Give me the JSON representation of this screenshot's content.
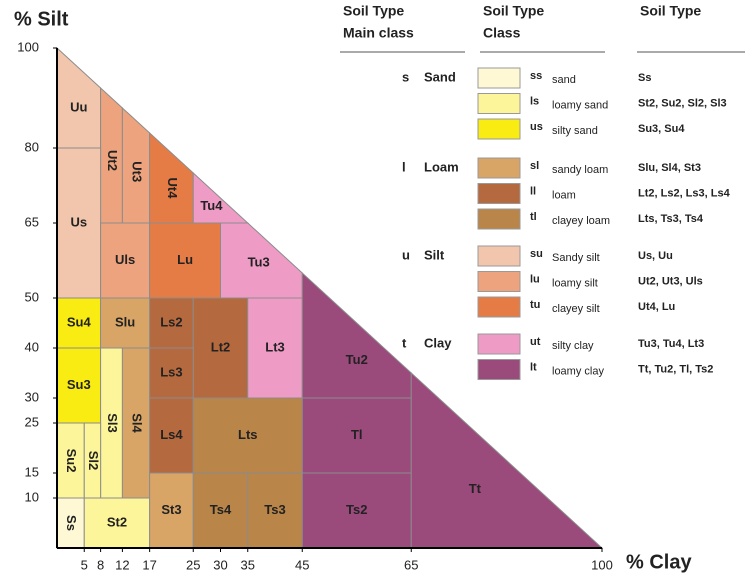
{
  "axes": {
    "y_label": "% Silt",
    "x_label": "% Clay",
    "xlim": [
      0,
      100
    ],
    "ylim": [
      0,
      100
    ],
    "xticks": [
      5,
      8,
      12,
      17,
      25,
      30,
      35,
      45,
      65,
      100
    ],
    "yticks": [
      100,
      80,
      65,
      50,
      40,
      30,
      25,
      15,
      10
    ]
  },
  "regions": [
    {
      "label": "Uu",
      "color": "#f2c6ac",
      "points": [
        [
          0,
          80
        ],
        [
          8,
          80
        ],
        [
          8,
          92
        ],
        [
          0,
          100
        ]
      ]
    },
    {
      "label": "Ut2",
      "color": "#eda47e",
      "points": [
        [
          8,
          65
        ],
        [
          12,
          65
        ],
        [
          12,
          88
        ],
        [
          8,
          92
        ]
      ]
    },
    {
      "label": "Ut3",
      "color": "#eda47e",
      "points": [
        [
          12,
          65
        ],
        [
          17,
          65
        ],
        [
          17,
          83
        ],
        [
          12,
          88
        ]
      ]
    },
    {
      "label": "Ut4",
      "color": "#e67c45",
      "points": [
        [
          17,
          65
        ],
        [
          25,
          65
        ],
        [
          25,
          75
        ],
        [
          17,
          83
        ]
      ]
    },
    {
      "label": "Us",
      "color": "#f2c6ac",
      "points": [
        [
          0,
          50
        ],
        [
          8,
          50
        ],
        [
          8,
          80
        ],
        [
          0,
          80
        ]
      ]
    },
    {
      "label": "Uls",
      "color": "#eda47e",
      "points": [
        [
          8,
          50
        ],
        [
          17,
          50
        ],
        [
          17,
          65
        ],
        [
          8,
          65
        ]
      ]
    },
    {
      "label": "Lu",
      "color": "#e67c45",
      "points": [
        [
          17,
          50
        ],
        [
          30,
          50
        ],
        [
          30,
          65
        ],
        [
          17,
          65
        ]
      ]
    },
    {
      "label": "Tu4",
      "color": "#ee9cc6",
      "points": [
        [
          25,
          65
        ],
        [
          35,
          65
        ],
        [
          25,
          75
        ]
      ]
    },
    {
      "label": "Tu3",
      "color": "#ee9cc6",
      "points": [
        [
          30,
          50
        ],
        [
          45,
          50
        ],
        [
          45,
          55
        ],
        [
          35,
          65
        ],
        [
          30,
          65
        ]
      ]
    },
    {
      "label": "Su4",
      "color": "#f8ec13",
      "points": [
        [
          0,
          40
        ],
        [
          8,
          40
        ],
        [
          8,
          50
        ],
        [
          0,
          50
        ]
      ]
    },
    {
      "label": "Slu",
      "color": "#d9a567",
      "points": [
        [
          8,
          40
        ],
        [
          17,
          40
        ],
        [
          17,
          50
        ],
        [
          8,
          50
        ]
      ]
    },
    {
      "label": "Ls2",
      "color": "#b5693f",
      "points": [
        [
          17,
          40
        ],
        [
          25,
          40
        ],
        [
          25,
          50
        ],
        [
          17,
          50
        ]
      ]
    },
    {
      "label": "Lt2",
      "color": "#b5693f",
      "points": [
        [
          25,
          30
        ],
        [
          35,
          30
        ],
        [
          35,
          50
        ],
        [
          25,
          50
        ]
      ]
    },
    {
      "label": "Lt3",
      "color": "#ee9cc6",
      "points": [
        [
          35,
          30
        ],
        [
          45,
          30
        ],
        [
          45,
          50
        ],
        [
          35,
          50
        ]
      ]
    },
    {
      "label": "Tu2",
      "color": "#9b4a7c",
      "points": [
        [
          45,
          30
        ],
        [
          65,
          30
        ],
        [
          65,
          35
        ],
        [
          45,
          55
        ]
      ]
    },
    {
      "label": "Su3",
      "color": "#f8ec13",
      "points": [
        [
          0,
          25
        ],
        [
          8,
          25
        ],
        [
          8,
          40
        ],
        [
          0,
          40
        ]
      ]
    },
    {
      "label": "Sl3",
      "color": "#fdf59a",
      "points": [
        [
          8,
          10
        ],
        [
          12,
          10
        ],
        [
          12,
          40
        ],
        [
          8,
          40
        ]
      ]
    },
    {
      "label": "Sl4",
      "color": "#d9a567",
      "points": [
        [
          12,
          10
        ],
        [
          17,
          10
        ],
        [
          17,
          40
        ],
        [
          12,
          40
        ]
      ]
    },
    {
      "label": "Ls3",
      "color": "#b5693f",
      "points": [
        [
          17,
          30
        ],
        [
          25,
          30
        ],
        [
          25,
          40
        ],
        [
          17,
          40
        ]
      ]
    },
    {
      "label": "Ls4",
      "color": "#b5693f",
      "points": [
        [
          17,
          15
        ],
        [
          25,
          15
        ],
        [
          25,
          30
        ],
        [
          17,
          30
        ]
      ]
    },
    {
      "label": "Lts",
      "color": "#b98549",
      "points": [
        [
          25,
          15
        ],
        [
          45,
          15
        ],
        [
          45,
          30
        ],
        [
          25,
          30
        ]
      ]
    },
    {
      "label": "Tl",
      "color": "#9b4a7c",
      "points": [
        [
          45,
          15
        ],
        [
          65,
          15
        ],
        [
          65,
          30
        ],
        [
          45,
          30
        ]
      ]
    },
    {
      "label": "Su2",
      "color": "#fdf59a",
      "points": [
        [
          0,
          10
        ],
        [
          5,
          10
        ],
        [
          5,
          25
        ],
        [
          0,
          25
        ]
      ]
    },
    {
      "label": "Sl2",
      "color": "#fdf59a",
      "points": [
        [
          5,
          10
        ],
        [
          8,
          10
        ],
        [
          8,
          25
        ],
        [
          5,
          25
        ]
      ]
    },
    {
      "label": "Ss",
      "color": "#fef9d4",
      "points": [
        [
          0,
          0
        ],
        [
          5,
          0
        ],
        [
          5,
          10
        ],
        [
          0,
          10
        ]
      ]
    },
    {
      "label": "St2",
      "color": "#fdf59a",
      "points": [
        [
          5,
          0
        ],
        [
          17,
          0
        ],
        [
          17,
          10
        ],
        [
          5,
          10
        ]
      ]
    },
    {
      "label": "St3",
      "color": "#d9a567",
      "points": [
        [
          17,
          0
        ],
        [
          25,
          0
        ],
        [
          25,
          15
        ],
        [
          17,
          15
        ]
      ]
    },
    {
      "label": "Ts4",
      "color": "#b98549",
      "points": [
        [
          25,
          0
        ],
        [
          35,
          0
        ],
        [
          35,
          15
        ],
        [
          25,
          15
        ]
      ]
    },
    {
      "label": "Ts3",
      "color": "#b98549",
      "points": [
        [
          35,
          0
        ],
        [
          45,
          0
        ],
        [
          45,
          15
        ],
        [
          35,
          15
        ]
      ]
    },
    {
      "label": "Ts2",
      "color": "#9b4a7c",
      "points": [
        [
          45,
          0
        ],
        [
          65,
          0
        ],
        [
          65,
          15
        ],
        [
          45,
          15
        ]
      ]
    },
    {
      "label": "Tt",
      "color": "#9b4a7c",
      "points": [
        [
          65,
          0
        ],
        [
          100,
          0
        ],
        [
          65,
          35
        ]
      ]
    }
  ],
  "legend": {
    "headers": [
      [
        "Soil Type",
        "Main class"
      ],
      [
        "Soil Type",
        "Class"
      ],
      [
        "Soil Type"
      ]
    ],
    "groups": [
      {
        "code": "s",
        "name": "Sand",
        "classes": [
          {
            "code": "ss",
            "name": "sand",
            "color": "#fef9d4",
            "types": "Ss"
          },
          {
            "code": "ls",
            "name": "loamy sand",
            "color": "#fdf59a",
            "types": "St2, Su2, Sl2, Sl3"
          },
          {
            "code": "us",
            "name": "silty sand",
            "color": "#f8ec13",
            "types": "Su3, Su4"
          }
        ]
      },
      {
        "code": "l",
        "name": "Loam",
        "classes": [
          {
            "code": "sl",
            "name": "sandy loam",
            "color": "#d9a567",
            "types": "Slu, Sl4, St3"
          },
          {
            "code": "ll",
            "name": "loam",
            "color": "#b5693f",
            "types": "Lt2, Ls2, Ls3, Ls4"
          },
          {
            "code": "tl",
            "name": "clayey loam",
            "color": "#b98549",
            "types": "Lts, Ts3, Ts4"
          }
        ]
      },
      {
        "code": "u",
        "name": "Silt",
        "classes": [
          {
            "code": "su",
            "name": "Sandy silt",
            "color": "#f2c6ac",
            "types": "Us, Uu"
          },
          {
            "code": "lu",
            "name": "loamy silt",
            "color": "#eda47e",
            "types": "Ut2, Ut3, Uls"
          },
          {
            "code": "tu",
            "name": "clayey silt",
            "color": "#e67c45",
            "types": "Ut4, Lu"
          }
        ]
      },
      {
        "code": "t",
        "name": "Clay",
        "classes": [
          {
            "code": "ut",
            "name": "silty clay",
            "color": "#ee9cc6",
            "types": "Tu3, Tu4, Lt3"
          },
          {
            "code": "lt",
            "name": "loamy clay",
            "color": "#9b4a7c",
            "types": "Tt, Tu2, Tl, Ts2"
          }
        ]
      }
    ]
  }
}
